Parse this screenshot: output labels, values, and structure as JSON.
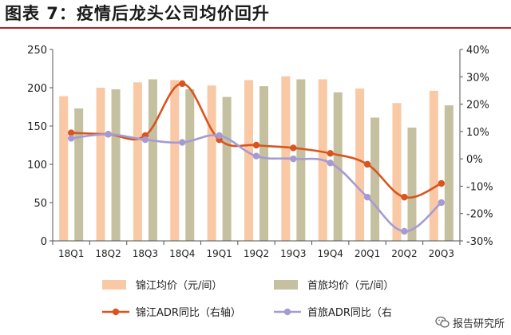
{
  "title": "图表 7：疫情后龙头公司均价回升",
  "watermark": "报告研究所",
  "colors": {
    "title_rule": "#b22222",
    "jinjiang_bar": "#f9c9a6",
    "shouly_bar": "#c4c0a0",
    "jinjiang_line": "#d9541e",
    "shouly_line": "#a59bd2"
  },
  "legend_items": [
    {
      "label": "锦江均价（元/间）",
      "kind": "bar",
      "color": "#f9c9a6"
    },
    {
      "label": "首旅均价（元/间）",
      "kind": "bar",
      "color": "#c4c0a0"
    },
    {
      "label": "锦江ADR同比（右轴）",
      "kind": "line",
      "color": "#d9541e"
    },
    {
      "label": "首旅ADR同比（右",
      "kind": "line",
      "color": "#a59bd2"
    }
  ],
  "chart_data": {
    "type": "bar",
    "combo": "bar+line",
    "categories": [
      "18Q1",
      "18Q2",
      "18Q3",
      "18Q4",
      "19Q1",
      "19Q2",
      "19Q3",
      "19Q4",
      "20Q1",
      "20Q2",
      "20Q3"
    ],
    "series": [
      {
        "name": "锦江均价（元/间）",
        "kind": "bar",
        "axis": "left",
        "color": "#f9c9a6",
        "values": [
          189,
          200,
          207,
          210,
          203,
          210,
          215,
          211,
          199,
          180,
          196
        ]
      },
      {
        "name": "首旅均价（元/间）",
        "kind": "bar",
        "axis": "left",
        "color": "#c4c0a0",
        "values": [
          173,
          198,
          211,
          198,
          188,
          202,
          211,
          194,
          161,
          148,
          177
        ]
      },
      {
        "name": "锦江ADR同比（右轴）",
        "kind": "line",
        "axis": "right",
        "color": "#d9541e",
        "values": [
          9.5,
          9.0,
          8.5,
          27.5,
          7.0,
          5.0,
          4.0,
          2.0,
          -2.0,
          -14.0,
          -9.0
        ]
      },
      {
        "name": "首旅ADR同比（右轴）",
        "kind": "line",
        "axis": "right",
        "color": "#a59bd2",
        "values": [
          7.5,
          9.0,
          7.0,
          6.0,
          8.5,
          1.0,
          0.0,
          -1.5,
          -14.0,
          -26.5,
          -16.0
        ]
      }
    ],
    "y_left": {
      "min": 0,
      "max": 250,
      "ticks": [
        0,
        50,
        100,
        150,
        200,
        250
      ],
      "tick_labels": [
        "0",
        "50",
        "100",
        "150",
        "200",
        "250"
      ]
    },
    "y_right": {
      "min": -30,
      "max": 40,
      "ticks": [
        -30,
        -20,
        -10,
        0,
        10,
        20,
        30,
        40
      ],
      "tick_labels": [
        "-30%",
        "-20%",
        "-10%",
        "0%",
        "10%",
        "20%",
        "30%",
        "40%"
      ]
    },
    "grid": false,
    "legend_position": "bottom"
  }
}
